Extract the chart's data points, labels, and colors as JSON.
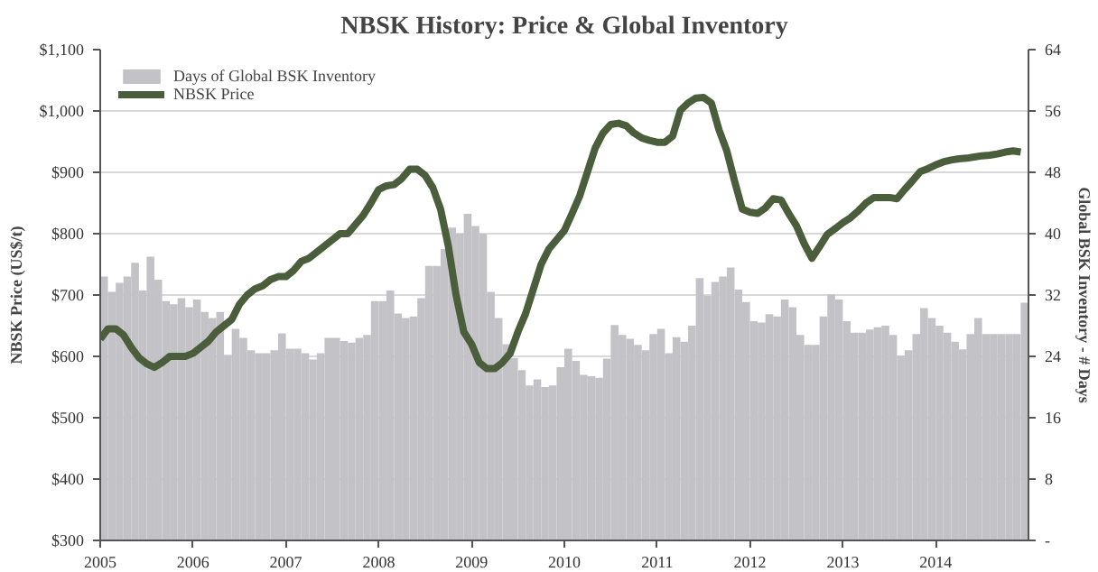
{
  "chart_data": {
    "type": "line",
    "title": "NBSK History: Price & Global Inventory",
    "ylabel": "NBSK Price (US$/t)",
    "y2label": "Global BSK Inventory - # Days",
    "x": [
      "2005-01",
      "2005-02",
      "2005-03",
      "2005-04",
      "2005-05",
      "2005-06",
      "2005-07",
      "2005-08",
      "2005-09",
      "2005-10",
      "2005-11",
      "2005-12",
      "2006-01",
      "2006-02",
      "2006-03",
      "2006-04",
      "2006-05",
      "2006-06",
      "2006-07",
      "2006-08",
      "2006-09",
      "2006-10",
      "2006-11",
      "2006-12",
      "2007-01",
      "2007-02",
      "2007-03",
      "2007-04",
      "2007-05",
      "2007-06",
      "2007-07",
      "2007-08",
      "2007-09",
      "2007-10",
      "2007-11",
      "2007-12",
      "2008-01",
      "2008-02",
      "2008-03",
      "2008-04",
      "2008-05",
      "2008-06",
      "2008-07",
      "2008-08",
      "2008-09",
      "2008-10",
      "2008-11",
      "2008-12",
      "2009-01",
      "2009-02",
      "2009-03",
      "2009-04",
      "2009-05",
      "2009-06",
      "2009-07",
      "2009-08",
      "2009-09",
      "2009-10",
      "2009-11",
      "2009-12",
      "2010-01",
      "2010-02",
      "2010-03",
      "2010-04",
      "2010-05",
      "2010-06",
      "2010-07",
      "2010-08",
      "2010-09",
      "2010-10",
      "2010-11",
      "2010-12",
      "2011-01",
      "2011-02",
      "2011-03",
      "2011-04",
      "2011-05",
      "2011-06",
      "2011-07",
      "2011-08",
      "2011-09",
      "2011-10",
      "2011-11",
      "2011-12",
      "2012-01",
      "2012-02",
      "2012-03",
      "2012-04",
      "2012-05",
      "2012-06",
      "2012-07",
      "2012-08",
      "2012-09",
      "2012-10",
      "2012-11",
      "2012-12",
      "2013-01",
      "2013-02",
      "2013-03",
      "2013-04",
      "2013-05",
      "2013-06",
      "2013-07",
      "2013-08",
      "2013-09",
      "2013-10",
      "2013-11",
      "2013-12",
      "2014-01",
      "2014-02",
      "2014-03",
      "2014-04",
      "2014-05",
      "2014-06",
      "2014-07",
      "2014-08",
      "2014-09",
      "2014-10",
      "2014-11",
      "2014-12"
    ],
    "series": [
      {
        "name": "Days of Global BSK Inventory",
        "type": "bar",
        "axis": "y2",
        "color": "#c3c2c7",
        "values": [
          34.4,
          32.4,
          33.6,
          34.4,
          36.2,
          32.6,
          37.0,
          34.0,
          31.2,
          30.8,
          31.6,
          30.4,
          31.4,
          29.8,
          29.0,
          29.8,
          24.2,
          27.6,
          26.4,
          24.8,
          24.4,
          24.4,
          24.8,
          27.0,
          25.0,
          25.0,
          24.4,
          23.6,
          24.4,
          26.4,
          26.4,
          26.0,
          25.8,
          26.4,
          26.8,
          31.2,
          31.2,
          32.6,
          29.6,
          29.0,
          29.2,
          31.6,
          35.8,
          35.8,
          38.0,
          40.8,
          40.0,
          42.6,
          41.0,
          40.0,
          32.4,
          29.0,
          25.6,
          23.8,
          22.2,
          20.2,
          21.0,
          20.0,
          20.2,
          22.6,
          25.0,
          23.4,
          21.6,
          21.4,
          21.2,
          23.7,
          28.1,
          26.8,
          26.3,
          25.5,
          24.8,
          26.9,
          27.6,
          24.4,
          26.5,
          25.9,
          28.0,
          34.2,
          31.9,
          33.7,
          34.4,
          35.6,
          32.7,
          31.1,
          28.6,
          28.4,
          29.5,
          29.2,
          31.4,
          30.4,
          26.8,
          25.5,
          25.5,
          29.2,
          32.1,
          31.4,
          28.6,
          27.1,
          27.1,
          27.5,
          27.8,
          28.0,
          26.8,
          24.1,
          24.8,
          26.9,
          30.3,
          29.0,
          28.0,
          27.1,
          25.9,
          24.9,
          26.9,
          29.0,
          26.9,
          26.9,
          26.9,
          26.9,
          26.9,
          31.0
        ]
      },
      {
        "name": "NBSK Price",
        "color": "#4b5e3b",
        "values": [
          628,
          645,
          645,
          635,
          615,
          598,
          588,
          582,
          590,
          600,
          600,
          600,
          605,
          615,
          625,
          640,
          650,
          660,
          685,
          700,
          710,
          715,
          725,
          730,
          730,
          740,
          755,
          760,
          770,
          780,
          790,
          800,
          800,
          815,
          830,
          850,
          872,
          878,
          880,
          890,
          905,
          905,
          895,
          875,
          840,
          780,
          700,
          640,
          620,
          590,
          580,
          580,
          590,
          605,
          640,
          670,
          710,
          750,
          775,
          790,
          805,
          833,
          862,
          901,
          940,
          964,
          978,
          980,
          976,
          964,
          956,
          952,
          949,
          949,
          959,
          1001,
          1013,
          1021,
          1022,
          1013,
          969,
          935,
          886,
          840,
          835,
          833,
          842,
          857,
          855,
          833,
          813,
          784,
          760,
          779,
          799,
          808,
          818,
          826,
          837,
          850,
          859,
          859,
          859,
          857,
          872,
          886,
          901,
          906,
          912,
          917,
          920,
          922,
          923,
          925,
          927,
          928,
          930,
          933,
          935,
          933
        ]
      }
    ],
    "xlim": [
      "2005-01",
      "2015-01"
    ],
    "xticks": [
      {
        "value": "2005-01",
        "label": "2005"
      },
      {
        "value": "2006-01",
        "label": "2006"
      },
      {
        "value": "2007-01",
        "label": "2007"
      },
      {
        "value": "2008-01",
        "label": "2008"
      },
      {
        "value": "2009-01",
        "label": "2009"
      },
      {
        "value": "2010-01",
        "label": "2010"
      },
      {
        "value": "2011-01",
        "label": "2011"
      },
      {
        "value": "2012-01",
        "label": "2012"
      },
      {
        "value": "2013-01",
        "label": "2013"
      },
      {
        "value": "2014-01",
        "label": "2014"
      }
    ],
    "ylim": [
      300,
      1100
    ],
    "yticks": [
      {
        "value": 300,
        "label": "$300"
      },
      {
        "value": 400,
        "label": "$400"
      },
      {
        "value": 500,
        "label": "$500"
      },
      {
        "value": 600,
        "label": "$600"
      },
      {
        "value": 700,
        "label": "$700"
      },
      {
        "value": 800,
        "label": "$800"
      },
      {
        "value": 900,
        "label": "$900"
      },
      {
        "value": 1000,
        "label": "$1,000"
      },
      {
        "value": 1100,
        "label": "$1,100"
      }
    ],
    "y2lim": [
      0,
      64
    ],
    "y2ticks": [
      {
        "value": 0,
        "label": "-"
      },
      8,
      16,
      24,
      32,
      40,
      48,
      56,
      64
    ],
    "grid": "y",
    "legend": "top left"
  }
}
